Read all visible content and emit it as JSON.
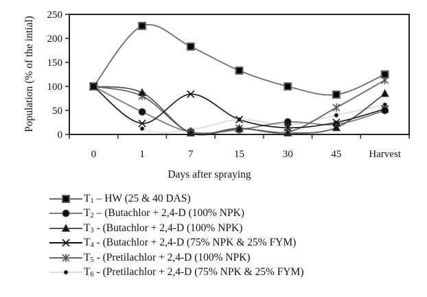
{
  "chart_data": {
    "type": "line",
    "title": "",
    "xlabel": "Days after spraying",
    "ylabel": "Population (% of the intial)",
    "categories": [
      "0",
      "1",
      "7",
      "15",
      "30",
      "45",
      "Harvest"
    ],
    "ylim": [
      0,
      250
    ],
    "yticks": [
      0,
      50,
      100,
      150,
      200,
      250
    ],
    "grid": false,
    "legend_position": "bottom",
    "smooth": true,
    "series": [
      {
        "id": "T1",
        "prefix": "T",
        "sub": "1",
        "name": " – HW (25 & 40 DAS)",
        "marker": "square",
        "line_color": "#6b6b6b",
        "values": [
          100,
          226,
          183,
          133,
          100,
          83,
          125
        ]
      },
      {
        "id": "T2",
        "prefix": "T",
        "sub": "2",
        "name": " – (Butachlor + 2,4-D (100% NPK)",
        "marker": "circle",
        "line_color": "#7a7a7a",
        "values": [
          100,
          47,
          5,
          10,
          26,
          21,
          50
        ]
      },
      {
        "id": "T3",
        "prefix": "T",
        "sub": "3",
        "name": " - (Butachlor + 2,4-D (100% NPK)",
        "marker": "triangle",
        "line_color": "#555555",
        "values": [
          100,
          87,
          3,
          12,
          3,
          14,
          85
        ]
      },
      {
        "id": "T4",
        "prefix": "T",
        "sub": "4",
        "name": " - (Butachlor + 2,4-D (75% NPK & 25% FYM)",
        "marker": "x",
        "line_color": "#111111",
        "values": [
          100,
          23,
          84,
          31,
          14,
          25,
          53
        ]
      },
      {
        "id": "T5",
        "prefix": "T",
        "sub": "5",
        "name": " - (Pretilachlor + 2,4-D (100% NPK)",
        "marker": "star",
        "line_color": "#666666",
        "values": [
          100,
          80,
          4,
          13,
          5,
          56,
          113
        ]
      },
      {
        "id": "T6",
        "prefix": "T",
        "sub": "6",
        "name": " - (Pretilachlor + 2,4-D (75% NPK & 25% FYM)",
        "marker": "dot",
        "line_color": "#dddddd",
        "values": [
          100,
          12,
          10,
          31,
          20,
          40,
          62
        ]
      }
    ]
  }
}
